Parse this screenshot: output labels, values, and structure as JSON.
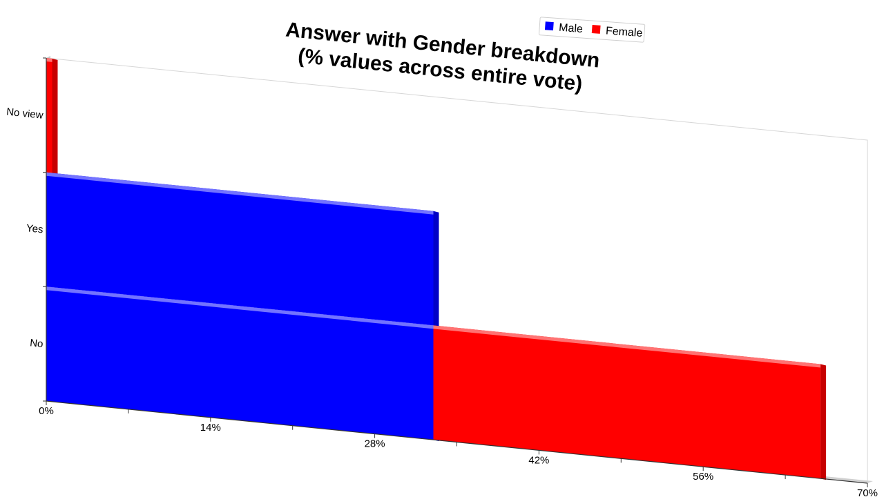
{
  "chart_data": {
    "type": "bar",
    "orientation": "horizontal",
    "stacked": true,
    "title": "Answer with Gender breakdown\n(% values across entire vote)",
    "categories": [
      "No view",
      "Yes",
      "No"
    ],
    "series": [
      {
        "name": "Male",
        "color": "#0000ff",
        "values": [
          0,
          33,
          33
        ]
      },
      {
        "name": "Female",
        "color": "#ff0000",
        "values": [
          0.5,
          0,
          33
        ]
      }
    ],
    "xlim": [
      0,
      70
    ],
    "x_ticks": [
      "0%",
      "14%",
      "28%",
      "42%",
      "56%",
      "70%"
    ],
    "legend_position": "top-right",
    "grid": false
  }
}
